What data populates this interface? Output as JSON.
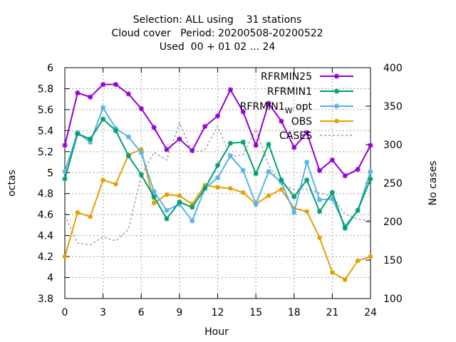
{
  "chart_data": {
    "type": "line",
    "title_lines": [
      "Selection: ALL using    31 stations",
      "Cloud cover   Period: 20200508-20200522",
      "Used  00 + 01 02 ... 24"
    ],
    "xlabel": "Hour",
    "ylabel": "octas",
    "y2label": "No cases",
    "xlim": [
      0,
      24
    ],
    "ylim": [
      3.8,
      6.0
    ],
    "y2lim": [
      100,
      400
    ],
    "x_ticks": [
      0,
      3,
      6,
      9,
      12,
      15,
      18,
      21,
      24
    ],
    "y_ticks": [
      3.8,
      4,
      4.2,
      4.4,
      4.6,
      4.8,
      5,
      5.2,
      5.4,
      5.6,
      5.8,
      6
    ],
    "y_tick_labels": [
      "3.8",
      "4",
      "4.2",
      "4.4",
      "4.6",
      "4.8",
      "5",
      "5.2",
      "5.4",
      "5.6",
      "5.8",
      "6"
    ],
    "y2_ticks": [
      100,
      150,
      200,
      250,
      300,
      350,
      400
    ],
    "grid": true,
    "legend_position": "top-right",
    "x": [
      0,
      1,
      2,
      3,
      4,
      5,
      6,
      7,
      8,
      9,
      10,
      11,
      12,
      13,
      14,
      15,
      16,
      17,
      18,
      19,
      20,
      21,
      22,
      23,
      24
    ],
    "series": [
      {
        "name": "RFRMIN25",
        "color": "#9400d3",
        "marker": "star",
        "axis": "y1",
        "values": [
          5.26,
          5.76,
          5.72,
          5.84,
          5.84,
          5.75,
          5.61,
          5.43,
          5.22,
          5.32,
          5.21,
          5.44,
          5.54,
          5.79,
          5.58,
          5.26,
          5.66,
          5.49,
          5.24,
          5.38,
          5.02,
          5.12,
          4.97,
          5.03,
          5.26
        ]
      },
      {
        "name": "RFRMIN1",
        "color": "#009e73",
        "marker": "star",
        "axis": "y1",
        "values": [
          4.94,
          5.37,
          5.32,
          5.51,
          5.4,
          5.16,
          4.98,
          4.77,
          4.56,
          4.72,
          4.67,
          4.85,
          5.07,
          5.28,
          5.29,
          4.99,
          5.27,
          4.93,
          4.77,
          4.93,
          4.63,
          4.81,
          4.47,
          4.64,
          4.94
        ]
      },
      {
        "name": "RFRMIN1_opt",
        "name_main": "RFRMIN1",
        "name_sub": "W",
        "name_suffix": "opt",
        "color": "#56b4e9",
        "marker": "star",
        "axis": "y1",
        "values": [
          5.01,
          5.38,
          5.29,
          5.62,
          5.42,
          5.34,
          5.19,
          4.82,
          4.64,
          4.7,
          4.54,
          4.85,
          4.95,
          5.16,
          5.02,
          4.7,
          5.01,
          4.91,
          4.62,
          5.1,
          4.74,
          4.75,
          4.49,
          4.64,
          5.01
        ]
      },
      {
        "name": "OBS",
        "color": "#e69f00",
        "marker": "dot",
        "axis": "y1",
        "values": [
          4.2,
          4.62,
          4.58,
          4.93,
          4.89,
          5.17,
          5.22,
          4.71,
          4.79,
          4.78,
          4.7,
          4.88,
          4.86,
          4.85,
          4.81,
          4.7,
          4.78,
          4.84,
          4.66,
          4.63,
          4.38,
          4.05,
          3.98,
          4.16,
          4.2
        ]
      },
      {
        "name": "CASES",
        "color": "#a0a0a0",
        "marker": "none",
        "dashed": true,
        "axis": "y2",
        "values": [
          208,
          172,
          170,
          180,
          175,
          190,
          260,
          290,
          280,
          328,
          290,
          293,
          324,
          284,
          287,
          320,
          273,
          248,
          242,
          242,
          237,
          233,
          210,
          203,
          201
        ]
      }
    ]
  }
}
